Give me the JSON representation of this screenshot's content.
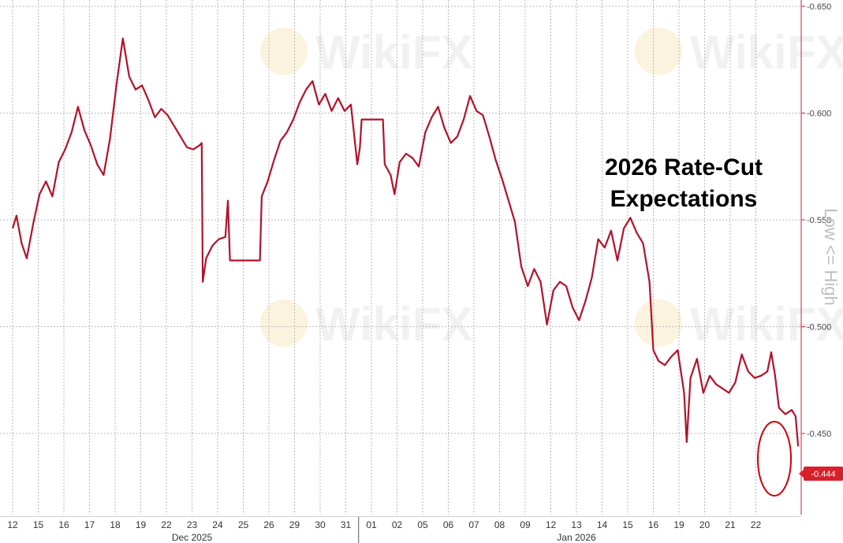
{
  "chart_data": {
    "type": "line",
    "annotation_lines": [
      "2026 Rate-Cut",
      "Expectations"
    ],
    "side_label": "Low <= High",
    "watermark": "WikiFX",
    "last_value_label": "-0.444",
    "y_ticks": [
      {
        "value": 0.65,
        "label": "-0.650"
      },
      {
        "value": 0.6,
        "label": "-0.600"
      },
      {
        "value": 0.55,
        "label": "-0.550"
      },
      {
        "value": 0.5,
        "label": "-0.500"
      },
      {
        "value": 0.45,
        "label": "-0.450"
      }
    ],
    "ylim": [
      0.412,
      0.65
    ],
    "x_ticks": [
      "12",
      "15",
      "16",
      "17",
      "18",
      "19",
      "22",
      "23",
      "24",
      "25",
      "26",
      "29",
      "30",
      "31",
      "01",
      "02",
      "05",
      "06",
      "07",
      "08",
      "09",
      "12",
      "13",
      "14",
      "15",
      "16",
      "19",
      "20",
      "21",
      "22"
    ],
    "month_labels": [
      {
        "label": "Dec 2025",
        "tick_index": 7
      },
      {
        "label": "Jan 2026",
        "tick_index": 22
      }
    ],
    "month_divider_after_tick": 13.5,
    "colors": {
      "line": "#b3122a",
      "axis": "#cc2233",
      "highlight_circle": "#cc0000",
      "last_value_bg": "#d81f2a",
      "last_value_text": "#ffffff"
    },
    "series": [
      {
        "values": [
          [
            0,
            0.546
          ],
          [
            0.15,
            0.552
          ],
          [
            0.35,
            0.539
          ],
          [
            0.55,
            0.532
          ],
          [
            0.8,
            0.548
          ],
          [
            1.05,
            0.562
          ],
          [
            1.3,
            0.568
          ],
          [
            1.55,
            0.561
          ],
          [
            1.8,
            0.577
          ],
          [
            2.05,
            0.583
          ],
          [
            2.3,
            0.591
          ],
          [
            2.55,
            0.603
          ],
          [
            2.8,
            0.592
          ],
          [
            3.05,
            0.585
          ],
          [
            3.3,
            0.576
          ],
          [
            3.55,
            0.571
          ],
          [
            3.8,
            0.588
          ],
          [
            4.05,
            0.613
          ],
          [
            4.3,
            0.635
          ],
          [
            4.55,
            0.617
          ],
          [
            4.8,
            0.611
          ],
          [
            5.05,
            0.613
          ],
          [
            5.3,
            0.606
          ],
          [
            5.55,
            0.598
          ],
          [
            5.8,
            0.602
          ],
          [
            6.05,
            0.599
          ],
          [
            6.3,
            0.594
          ],
          [
            6.55,
            0.589
          ],
          [
            6.8,
            0.584
          ],
          [
            7.05,
            0.583
          ],
          [
            7.3,
            0.585
          ],
          [
            7.38,
            0.586
          ],
          [
            7.42,
            0.521
          ],
          [
            7.55,
            0.532
          ],
          [
            7.8,
            0.538
          ],
          [
            8.05,
            0.541
          ],
          [
            8.3,
            0.542
          ],
          [
            8.4,
            0.559
          ],
          [
            8.48,
            0.531
          ],
          [
            9.65,
            0.531
          ],
          [
            9.72,
            0.561
          ],
          [
            9.95,
            0.568
          ],
          [
            10.2,
            0.578
          ],
          [
            10.45,
            0.587
          ],
          [
            10.7,
            0.591
          ],
          [
            10.95,
            0.597
          ],
          [
            11.2,
            0.605
          ],
          [
            11.45,
            0.611
          ],
          [
            11.7,
            0.615
          ],
          [
            11.95,
            0.604
          ],
          [
            12.2,
            0.609
          ],
          [
            12.45,
            0.601
          ],
          [
            12.7,
            0.607
          ],
          [
            12.95,
            0.601
          ],
          [
            13.2,
            0.604
          ],
          [
            13.45,
            0.576
          ],
          [
            13.55,
            0.584
          ],
          [
            13.62,
            0.597
          ],
          [
            14.45,
            0.597
          ],
          [
            14.52,
            0.576
          ],
          [
            14.75,
            0.571
          ],
          [
            14.9,
            0.562
          ],
          [
            15.1,
            0.577
          ],
          [
            15.35,
            0.581
          ],
          [
            15.6,
            0.579
          ],
          [
            15.85,
            0.575
          ],
          [
            16.1,
            0.591
          ],
          [
            16.35,
            0.598
          ],
          [
            16.6,
            0.603
          ],
          [
            16.85,
            0.593
          ],
          [
            17.1,
            0.586
          ],
          [
            17.35,
            0.589
          ],
          [
            17.6,
            0.597
          ],
          [
            17.85,
            0.608
          ],
          [
            18.1,
            0.601
          ],
          [
            18.35,
            0.599
          ],
          [
            18.6,
            0.589
          ],
          [
            18.85,
            0.578
          ],
          [
            19.1,
            0.569
          ],
          [
            19.35,
            0.559
          ],
          [
            19.6,
            0.549
          ],
          [
            19.85,
            0.528
          ],
          [
            20.1,
            0.519
          ],
          [
            20.35,
            0.527
          ],
          [
            20.6,
            0.521
          ],
          [
            20.85,
            0.501
          ],
          [
            21.1,
            0.517
          ],
          [
            21.35,
            0.521
          ],
          [
            21.6,
            0.519
          ],
          [
            21.85,
            0.509
          ],
          [
            22.1,
            0.503
          ],
          [
            22.35,
            0.512
          ],
          [
            22.6,
            0.523
          ],
          [
            22.85,
            0.541
          ],
          [
            23.1,
            0.537
          ],
          [
            23.35,
            0.545
          ],
          [
            23.6,
            0.531
          ],
          [
            23.85,
            0.546
          ],
          [
            24.1,
            0.551
          ],
          [
            24.35,
            0.544
          ],
          [
            24.6,
            0.539
          ],
          [
            24.85,
            0.521
          ],
          [
            25.0,
            0.489
          ],
          [
            25.2,
            0.484
          ],
          [
            25.45,
            0.482
          ],
          [
            25.7,
            0.486
          ],
          [
            25.95,
            0.489
          ],
          [
            26.2,
            0.469
          ],
          [
            26.3,
            0.446
          ],
          [
            26.45,
            0.476
          ],
          [
            26.7,
            0.485
          ],
          [
            26.95,
            0.469
          ],
          [
            27.2,
            0.477
          ],
          [
            27.45,
            0.473
          ],
          [
            27.7,
            0.471
          ],
          [
            27.95,
            0.469
          ],
          [
            28.2,
            0.474
          ],
          [
            28.45,
            0.487
          ],
          [
            28.7,
            0.479
          ],
          [
            28.95,
            0.476
          ],
          [
            29.2,
            0.477
          ],
          [
            29.45,
            0.479
          ],
          [
            29.6,
            0.488
          ],
          [
            29.75,
            0.477
          ],
          [
            29.9,
            0.462
          ],
          [
            30.15,
            0.459
          ],
          [
            30.4,
            0.461
          ],
          [
            30.55,
            0.458
          ],
          [
            30.65,
            0.444
          ]
        ]
      }
    ]
  }
}
